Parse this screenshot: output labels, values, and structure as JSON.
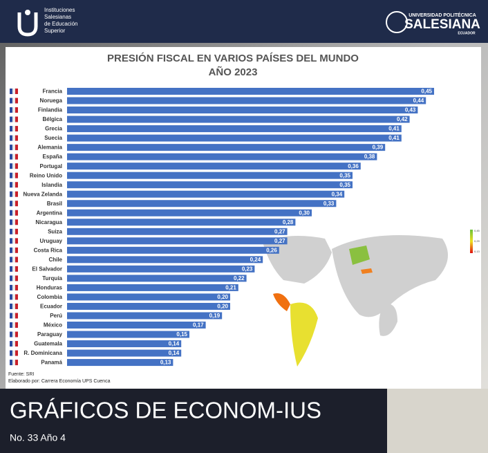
{
  "header": {
    "institution": [
      "Instituciones",
      "Salesianas",
      "de Educación",
      "Superior"
    ],
    "university": "UNIVERSIDAD POLITÉCNICA",
    "university_name": "SALESIANA",
    "country": "ECUADOR"
  },
  "chart_data": {
    "type": "bar",
    "orientation": "horizontal",
    "title": "PRESIÓN FISCAL EN VARIOS PAÍSES DEL MUNDO",
    "subtitle": "AÑO 2023",
    "categories": [
      "Francia",
      "Noruega",
      "Finlandia",
      "Bélgica",
      "Grecia",
      "Suecia",
      "Alemania",
      "España",
      "Portugal",
      "Reino Unido",
      "Islandia",
      "Nueva Zelanda",
      "Brasil",
      "Argentina",
      "Nicaragua",
      "Suiza",
      "Uruguay",
      "Costa Rica",
      "Chile",
      "El Salvador",
      "Turquía",
      "Honduras",
      "Colombia",
      "Ecuador",
      "Perú",
      "México",
      "Paraguay",
      "Guatemala",
      "R. Dominicana",
      "Panamá"
    ],
    "values": [
      0.45,
      0.44,
      0.43,
      0.42,
      0.41,
      0.41,
      0.39,
      0.38,
      0.36,
      0.35,
      0.35,
      0.34,
      0.33,
      0.3,
      0.28,
      0.27,
      0.27,
      0.26,
      0.24,
      0.23,
      0.22,
      0.21,
      0.2,
      0.2,
      0.19,
      0.17,
      0.15,
      0.14,
      0.14,
      0.13
    ],
    "value_labels": [
      "0,45",
      "0,44",
      "0,43",
      "0,42",
      "0,41",
      "0,41",
      "0,39",
      "0,38",
      "0,36",
      "0,35",
      "0,35",
      "0,34",
      "0,33",
      "0,30",
      "0,28",
      "0,27",
      "0,27",
      "0,26",
      "0,24",
      "0,23",
      "0,22",
      "0,21",
      "0,20",
      "0,20",
      "0,19",
      "0,17",
      "0,15",
      "0,14",
      "0,14",
      "0,13"
    ],
    "color": "#4472c4",
    "xlim": [
      0,
      0.45
    ],
    "source": "Fuente: SRI",
    "author": "Elaborado por: Carrera Economía UPS Cuenca"
  },
  "map_legend": [
    "0,45",
    "0,29",
    "0,13"
  ],
  "footer": {
    "title": "GRÁFICOS DE ECONOM-IUS",
    "issue": "No. 33 Año 4"
  }
}
